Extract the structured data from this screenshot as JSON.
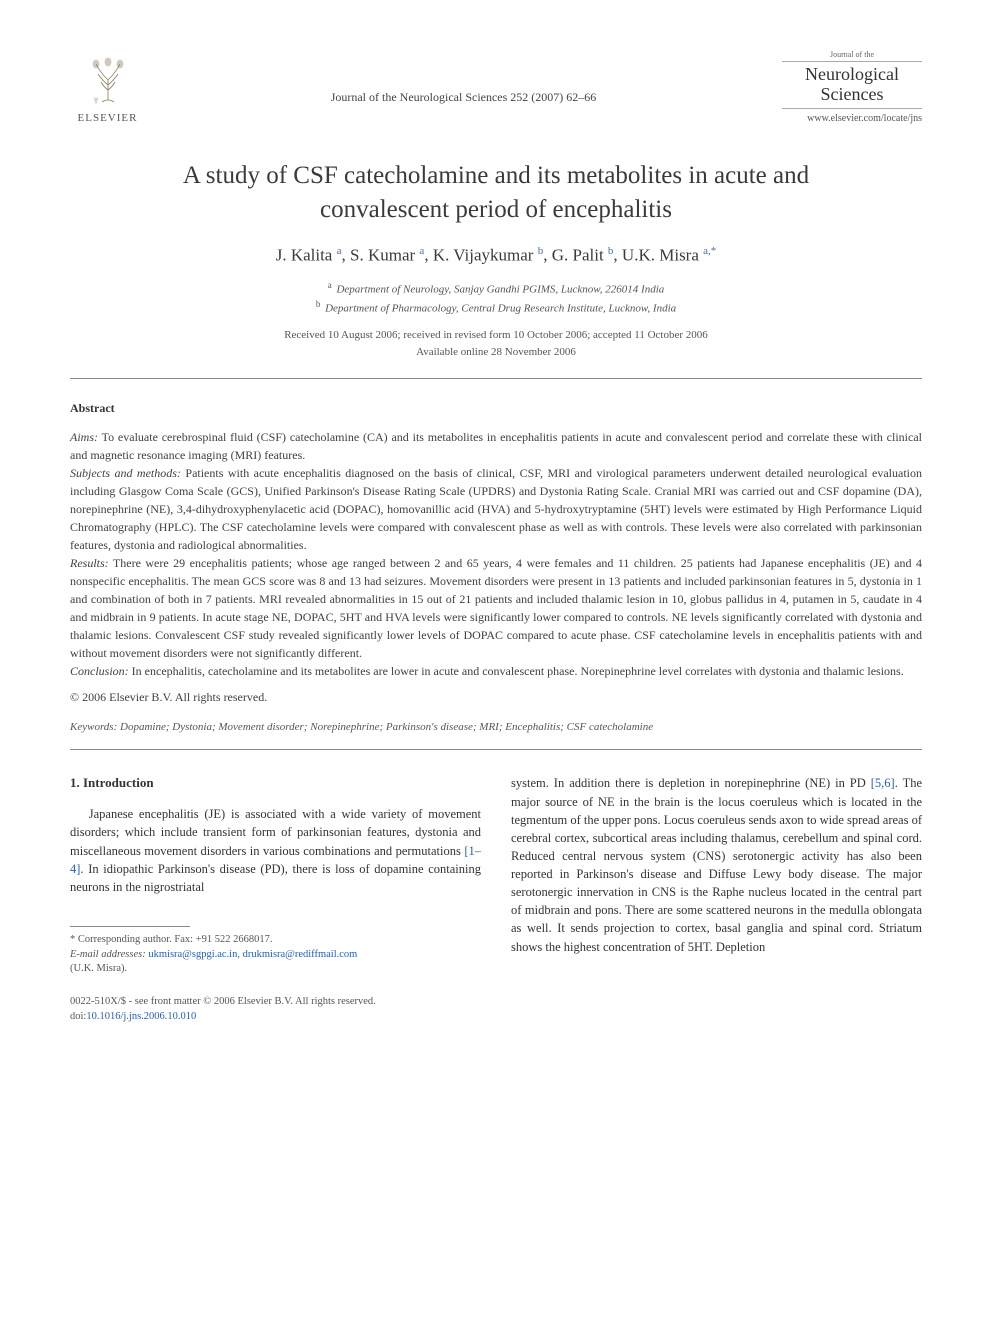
{
  "header": {
    "publisher": "ELSEVIER",
    "citation": "Journal of the Neurological Sciences 252 (2007) 62–66",
    "journal_small": "Journal of the",
    "journal_name_1": "Neurological",
    "journal_name_2": "Sciences",
    "journal_url": "www.elsevier.com/locate/jns"
  },
  "title": "A study of CSF catecholamine and its metabolites in acute and convalescent period of encephalitis",
  "authors_html": "J. Kalita <sup>a</sup>, S. Kumar <sup>a</sup>, K. Vijaykumar <sup>b</sup>, G. Palit <sup>b</sup>, U.K. Misra <sup>a,*</sup>",
  "affiliations": {
    "a": "Department of Neurology, Sanjay Gandhi PGIMS, Lucknow, 226014 India",
    "b": "Department of Pharmacology, Central Drug Research Institute, Lucknow, India"
  },
  "dates": {
    "line1": "Received 10 August 2006; received in revised form 10 October 2006; accepted 11 October 2006",
    "line2": "Available online 28 November 2006"
  },
  "abstract": {
    "heading": "Abstract",
    "aims_label": "Aims:",
    "aims": " To evaluate cerebrospinal fluid (CSF) catecholamine (CA) and its metabolites in encephalitis patients in acute and convalescent period and correlate these with clinical and magnetic resonance imaging (MRI) features.",
    "subjects_label": "Subjects and methods:",
    "subjects": " Patients with acute encephalitis diagnosed on the basis of clinical, CSF, MRI and virological parameters underwent detailed neurological evaluation including Glasgow Coma Scale (GCS), Unified Parkinson's Disease Rating Scale (UPDRS) and Dystonia Rating Scale. Cranial MRI was carried out and CSF dopamine (DA), norepinephrine (NE), 3,4-dihydroxyphenylacetic acid (DOPAC), homovanillic acid (HVA) and 5-hydroxytryptamine (5HT) levels were estimated by High Performance Liquid Chromatography (HPLC). The CSF catecholamine levels were compared with convalescent phase as well as with controls. These levels were also correlated with parkinsonian features, dystonia and radiological abnormalities.",
    "results_label": "Results:",
    "results": " There were 29 encephalitis patients; whose age ranged between 2 and 65 years, 4 were females and 11 children. 25 patients had Japanese encephalitis (JE) and 4 nonspecific encephalitis. The mean GCS score was 8 and 13 had seizures. Movement disorders were present in 13 patients and included parkinsonian features in 5, dystonia in 1 and combination of both in 7 patients. MRI revealed abnormalities in 15 out of 21 patients and included thalamic lesion in 10, globus pallidus in 4, putamen in 5, caudate in 4 and midbrain in 9 patients. In acute stage NE, DOPAC, 5HT and HVA levels were significantly lower compared to controls. NE levels significantly correlated with dystonia and thalamic lesions. Convalescent CSF study revealed significantly lower levels of DOPAC compared to acute phase. CSF catecholamine levels in encephalitis patients with and without movement disorders were not significantly different.",
    "conclusion_label": "Conclusion:",
    "conclusion": " In encephalitis, catecholamine and its metabolites are lower in acute and convalescent phase. Norepinephrine level correlates with dystonia and thalamic lesions.",
    "copyright": "© 2006 Elsevier B.V. All rights reserved."
  },
  "keywords": {
    "label": "Keywords:",
    "text": " Dopamine; Dystonia; Movement disorder; Norepinephrine; Parkinson's disease; MRI; Encephalitis; CSF catecholamine"
  },
  "intro": {
    "heading": "1. Introduction",
    "col1_part1": "Japanese encephalitis (JE) is associated with a wide variety of movement disorders; which include transient form of parkinsonian features, dystonia and miscellaneous movement disorders in various combinations and permutations ",
    "col1_ref1": "[1–4]",
    "col1_part2": ". In idiopathic Parkinson's disease (PD), there is loss of dopamine containing neurons in the nigrostriatal",
    "col2_part1": "system. In addition there is depletion in norepinephrine (NE) in PD ",
    "col2_ref1": "[5,6]",
    "col2_part2": ". The major source of NE in the brain is the locus coeruleus which is located in the tegmentum of the upper pons. Locus coeruleus sends axon to wide spread areas of cerebral cortex, subcortical areas including thalamus, cerebellum and spinal cord. Reduced central nervous system (CNS) serotonergic activity has also been reported in Parkinson's disease and Diffuse Lewy body disease. The major serotonergic innervation in CNS is the Raphe nucleus located in the central part of midbrain and pons. There are some scattered neurons in the medulla oblongata as well. It sends projection to cortex, basal ganglia and spinal cord. Striatum shows the highest concentration of 5HT. Depletion"
  },
  "footnotes": {
    "corresponding": "* Corresponding author. Fax: +91 522 2668017.",
    "email_label": "E-mail addresses:",
    "email1": "ukmisra@sgpgi.ac.in",
    "email_sep": ", ",
    "email2": "drukmisra@rediffmail.com",
    "email_owner": "(U.K. Misra)."
  },
  "footer": {
    "line1": "0022-510X/$ - see front matter © 2006 Elsevier B.V. All rights reserved.",
    "doi_label": "doi:",
    "doi": "10.1016/j.jns.2006.10.010"
  },
  "colors": {
    "text": "#333333",
    "muted": "#555555",
    "link": "#2a5db0",
    "rule": "#888888"
  }
}
